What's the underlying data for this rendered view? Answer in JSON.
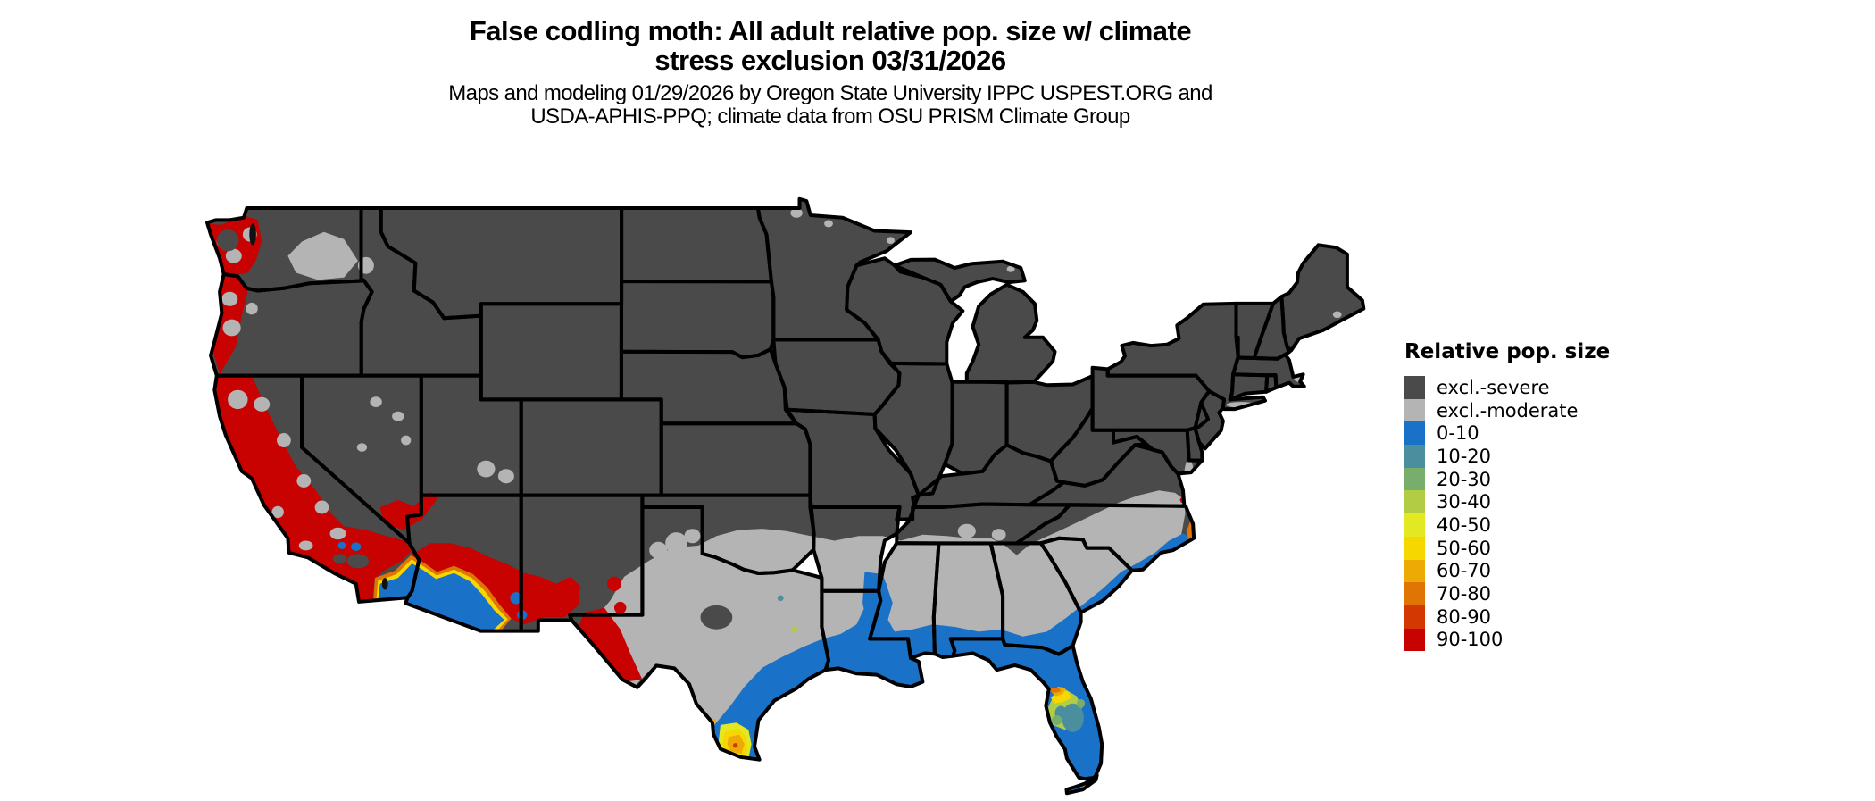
{
  "title": {
    "line1": "False codling moth: All adult relative pop. size w/ climate",
    "line2": "stress exclusion 03/31/2026"
  },
  "subtitle": {
    "line1": "Maps and modeling 01/29/2026 by Oregon State University IPPC USPEST.ORG and",
    "line2": "USDA-APHIS-PPQ; climate data from OSU PRISM Climate Group"
  },
  "legend": {
    "title": "Relative pop. size",
    "items": [
      {
        "label": "excl.-severe",
        "color": "#4a4a4a"
      },
      {
        "label": "excl.-moderate",
        "color": "#b4b4b4"
      },
      {
        "label": "0-10",
        "color": "#1a71c8"
      },
      {
        "label": "10-20",
        "color": "#4b8f9e"
      },
      {
        "label": "20-30",
        "color": "#77ae6c"
      },
      {
        "label": "30-40",
        "color": "#b2cd44"
      },
      {
        "label": "40-50",
        "color": "#e2e821"
      },
      {
        "label": "50-60",
        "color": "#f6d800"
      },
      {
        "label": "60-70",
        "color": "#eeaa04"
      },
      {
        "label": "70-80",
        "color": "#e07503"
      },
      {
        "label": "80-90",
        "color": "#d33803"
      },
      {
        "label": "90-100",
        "color": "#c80101"
      }
    ]
  },
  "map": {
    "type": "choropleth-raster",
    "region": "Continental United States with state borders",
    "background": "#ffffff",
    "border_color": "#000000",
    "water_color": "#111111",
    "base_class": "excl.-severe",
    "regions_summary": [
      {
        "area": "Pacific coast, Willamette Valley and California Central Valley/coast",
        "class": "90-100"
      },
      {
        "area": "Western Washington lowlands",
        "class": "90-100 mixed with excl.-moderate patches"
      },
      {
        "area": "Columbia Basin (eastern WA)",
        "class": "excl.-moderate"
      },
      {
        "area": "Interior West, Rockies, Plains, Midwest, Northeast",
        "class": "excl.-severe"
      },
      {
        "area": "South-central/southeastern band: central Texas, southern Oklahoma, Arkansas, Mississippi, Alabama, Georgia, the Carolinas inland, west Texas basins",
        "class": "excl.-moderate"
      },
      {
        "area": "Gulf Coast, southern Texas, Louisiana coast, Florida, coastal Georgia/South Carolina/North Carolina, lower Mississippi valley",
        "class": "0-10"
      },
      {
        "area": "Lower Rio Grande Valley (south Texas)",
        "class": "40-80 hotspot ring"
      },
      {
        "area": "Central Florida",
        "class": "10-80 mixed hotspot"
      },
      {
        "area": "SW Arizona / SE California deserts",
        "class": "0-10 core ringed by 50-100"
      },
      {
        "area": "Central Arizona through southern New Mexico to far-west Texas",
        "class": "80-100"
      },
      {
        "area": "Southern Nevada / Lake Mead area",
        "class": "90-100"
      },
      {
        "area": "NC Outer Banks",
        "class": "60-80"
      }
    ]
  }
}
